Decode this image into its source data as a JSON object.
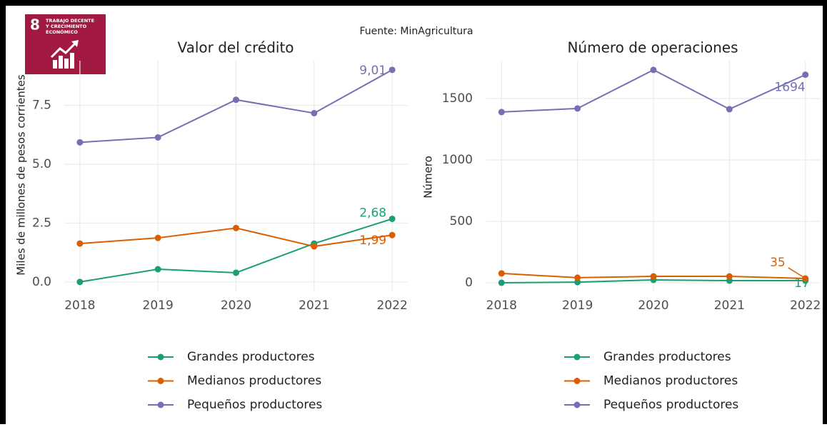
{
  "source": "Fuente: MinAgricultura",
  "logo": {
    "number": "8",
    "lines": [
      "TRABAJO DECENTE",
      "Y CRECIMIENTO",
      "ECONÓMICO"
    ]
  },
  "chart_data": [
    {
      "type": "line",
      "title": "Valor del crédito",
      "y_label": "Miles de millones de pesos corrientes",
      "x": [
        2018,
        2019,
        2020,
        2021,
        2022
      ],
      "xlim": [
        2017.8,
        2022.2
      ],
      "xticks": [
        2018,
        2019,
        2020,
        2021,
        2022
      ],
      "ylim": [
        -0.4,
        9.4
      ],
      "yticks": [
        {
          "value": 0,
          "label": "0.0"
        },
        2.5,
        {
          "value": 5,
          "label": "5.0"
        },
        7.5
      ],
      "grid": true,
      "series": [
        {
          "name": "Grandes productores",
          "color": "#1b9e77",
          "values": [
            0.0,
            0.54,
            0.39,
            1.63,
            2.68
          ],
          "value_labels": [
            null,
            null,
            null,
            null,
            "2,68"
          ]
        },
        {
          "name": "Medianos productores",
          "color": "#d95f02",
          "values": [
            1.63,
            1.87,
            2.29,
            1.51,
            1.99
          ],
          "value_labels": [
            null,
            null,
            null,
            null,
            "1,99"
          ]
        },
        {
          "name": "Pequeños productores",
          "color": "#7570b3",
          "values": [
            5.93,
            6.14,
            7.74,
            7.17,
            9.01
          ],
          "value_labels": [
            null,
            null,
            null,
            null,
            "9,01"
          ]
        }
      ]
    },
    {
      "type": "line",
      "title": "Número de operaciones",
      "y_label": "Número",
      "x": [
        2018,
        2019,
        2020,
        2021,
        2022
      ],
      "xlim": [
        2017.8,
        2022.2
      ],
      "xticks": [
        2018,
        2019,
        2020,
        2021,
        2022
      ],
      "ylim": [
        -70,
        1808
      ],
      "yticks": [
        0,
        500,
        1000,
        1500
      ],
      "grid": true,
      "series": [
        {
          "name": "Grandes productores",
          "color": "#1b9e77",
          "values": [
            0,
            5,
            23,
            17,
            17
          ],
          "value_labels": [
            null,
            null,
            null,
            null,
            "17"
          ]
        },
        {
          "name": "Medianos productores",
          "color": "#d95f02",
          "values": [
            76,
            41,
            52,
            52,
            35
          ],
          "value_labels": [
            null,
            null,
            null,
            null,
            "35"
          ]
        },
        {
          "name": "Pequeños productores",
          "color": "#7570b3",
          "values": [
            1390,
            1419,
            1733,
            1413,
            1694
          ],
          "value_labels": [
            null,
            null,
            null,
            null,
            "1694"
          ]
        }
      ]
    }
  ]
}
